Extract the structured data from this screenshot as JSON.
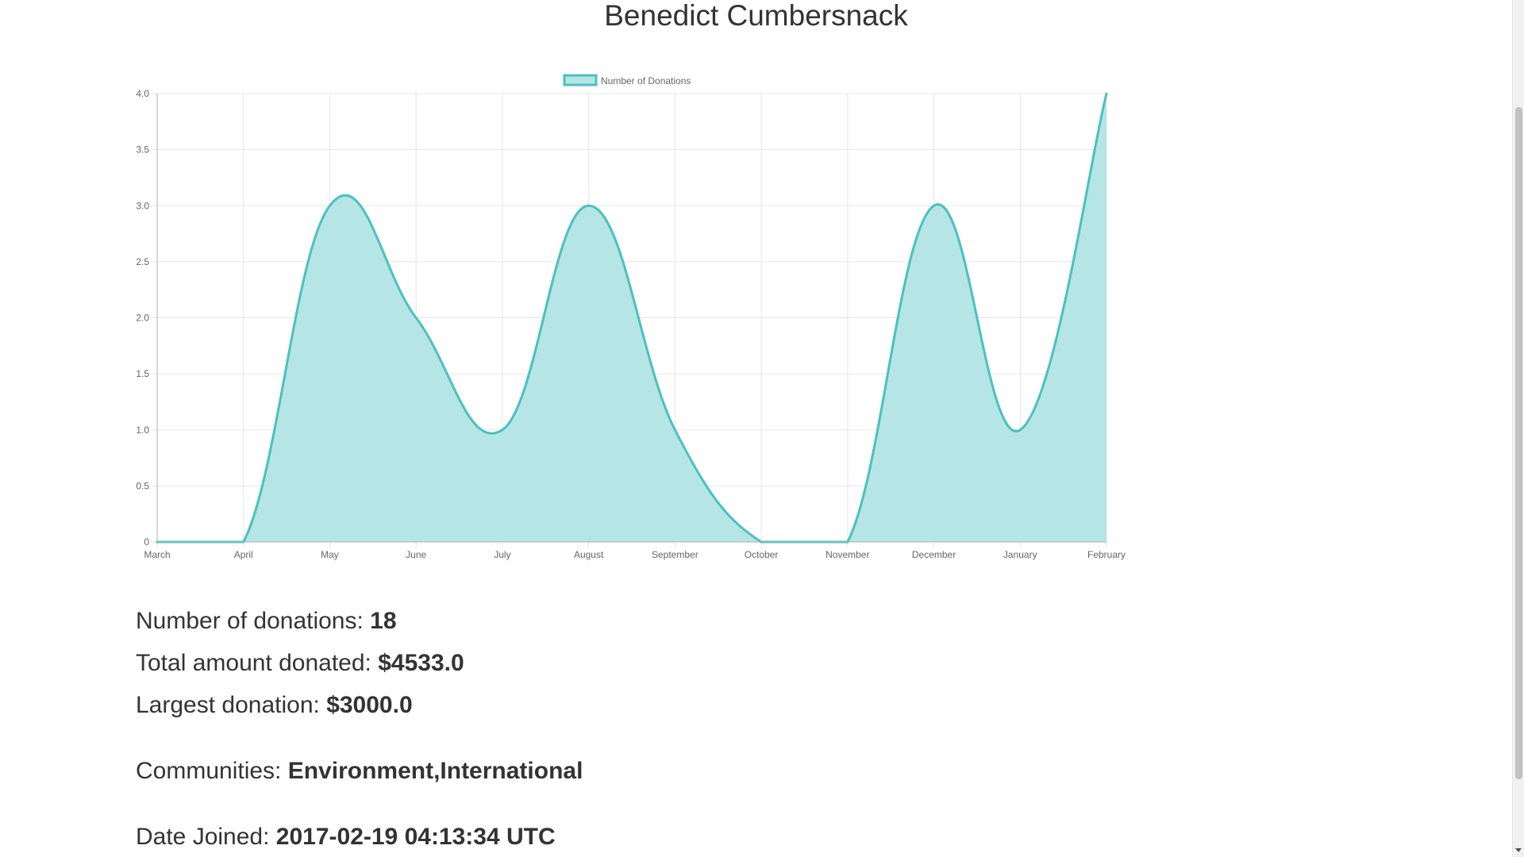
{
  "page": {
    "title": "Benedict Cumbersnack"
  },
  "stats": {
    "donations_label": "Number of donations: ",
    "donations_value": "18",
    "total_label": "Total amount donated: ",
    "total_value": "$4533.0",
    "largest_label": "Largest donation: ",
    "largest_value": "$3000.0",
    "communities_label": "Communities: ",
    "communities_value": "Environment,International",
    "joined_label": "Date Joined: ",
    "joined_value": "2017-02-19 04:13:34 UTC"
  },
  "chart_data": {
    "type": "area",
    "categories": [
      "March",
      "April",
      "May",
      "June",
      "July",
      "August",
      "September",
      "October",
      "November",
      "December",
      "January",
      "February"
    ],
    "series": [
      {
        "name": "Number of Donations",
        "values": [
          0,
          0,
          3,
          2,
          1,
          3,
          1,
          0,
          0,
          3,
          1,
          4
        ]
      }
    ],
    "ylim": [
      0,
      4.0
    ],
    "yticks": [
      "0",
      "0.5",
      "1.0",
      "1.5",
      "2.0",
      "2.5",
      "3.0",
      "3.5",
      "4.0"
    ],
    "grid": true,
    "legend_position": "top-center",
    "colors": {
      "line": "#4bc0c0",
      "fill": "#b5e5e5",
      "grid": "#e5e5e5",
      "axis": "#b0b0b0",
      "tick_text": "#666666"
    }
  }
}
